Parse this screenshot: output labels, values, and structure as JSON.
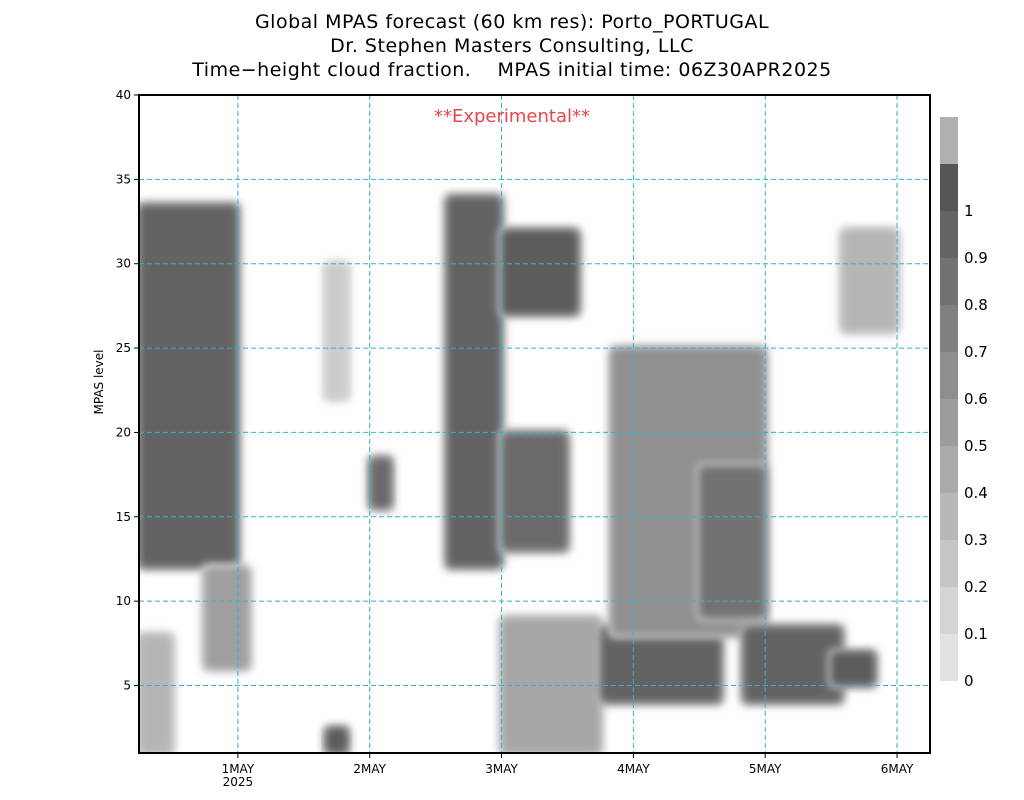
{
  "titles": {
    "line1": "Global MPAS forecast (60 km res): Porto_PORTUGAL",
    "line2": "Dr. Stephen Masters Consulting, LLC",
    "line3": "Time−height cloud fraction.    MPAS initial time: 06Z30APR2025"
  },
  "chart_data": {
    "type": "heatmap",
    "title": "Time-height cloud fraction.",
    "ylabel": "MPAS level",
    "xlabel": "",
    "ylim": [
      1,
      40
    ],
    "yticks": [
      5,
      10,
      15,
      20,
      25,
      30,
      35,
      40
    ],
    "xlim": [
      "2025-04-30T06:00",
      "2025-05-06T06:00"
    ],
    "xticks": [
      {
        "time": "2025-05-01T00:00",
        "label": "1MAY",
        "sublabel": "2025"
      },
      {
        "time": "2025-05-02T00:00",
        "label": "2MAY",
        "sublabel": ""
      },
      {
        "time": "2025-05-03T00:00",
        "label": "3MAY",
        "sublabel": ""
      },
      {
        "time": "2025-05-04T00:00",
        "label": "4MAY",
        "sublabel": ""
      },
      {
        "time": "2025-05-05T00:00",
        "label": "5MAY",
        "sublabel": ""
      },
      {
        "time": "2025-05-06T00:00",
        "label": "6MAY",
        "sublabel": ""
      }
    ],
    "grid": true,
    "annotation": "**Experimental**",
    "colorbar": {
      "labels": [
        "0",
        "0.1",
        "0.2",
        "0.3",
        "0.4",
        "0.5",
        "0.6",
        "0.7",
        "0.8",
        "0.9",
        "1"
      ],
      "colors": [
        "#e2e2e2",
        "#d4d4d4",
        "#c6c6c6",
        "#b8b8b8",
        "#aaaaaa",
        "#9c9c9c",
        "#8e8e8e",
        "#808080",
        "#727272",
        "#646464",
        "#565656",
        "#b0b0b0"
      ]
    },
    "cloud_regions": [
      {
        "t0": "2025-04-30T06:00",
        "t1": "2025-05-01T00:00",
        "z0": 12,
        "z1": 33.5,
        "fraction": 0.85
      },
      {
        "t0": "2025-04-30T06:00",
        "t1": "2025-04-30T12:00",
        "z0": 1,
        "z1": 8,
        "fraction": 0.3
      },
      {
        "t0": "2025-04-30T18:00",
        "t1": "2025-05-01T02:00",
        "z0": 6,
        "z1": 12,
        "fraction": 0.45
      },
      {
        "t0": "2025-05-01T16:00",
        "t1": "2025-05-01T20:00",
        "z0": 1,
        "z1": 2.5,
        "fraction": 0.9
      },
      {
        "t0": "2025-05-01T16:00",
        "t1": "2025-05-01T20:00",
        "z0": 22,
        "z1": 30,
        "fraction": 0.15
      },
      {
        "t0": "2025-05-02T00:00",
        "t1": "2025-05-02T04:00",
        "z0": 15.5,
        "z1": 18.5,
        "fraction": 0.8
      },
      {
        "t0": "2025-05-02T14:00",
        "t1": "2025-05-03T00:00",
        "z0": 12,
        "z1": 34,
        "fraction": 0.85
      },
      {
        "t0": "2025-05-03T00:00",
        "t1": "2025-05-03T14:00",
        "z0": 27,
        "z1": 32,
        "fraction": 0.9
      },
      {
        "t0": "2025-05-03T00:00",
        "t1": "2025-05-03T12:00",
        "z0": 13,
        "z1": 20,
        "fraction": 0.8
      },
      {
        "t0": "2025-05-03T00:00",
        "t1": "2025-05-03T18:00",
        "z0": 1,
        "z1": 9,
        "fraction": 0.4
      },
      {
        "t0": "2025-05-03T18:00",
        "t1": "2025-05-04T16:00",
        "z0": 4,
        "z1": 8.5,
        "fraction": 0.85
      },
      {
        "t0": "2025-05-03T20:00",
        "t1": "2025-05-05T00:00",
        "z0": 8,
        "z1": 25,
        "fraction": 0.55
      },
      {
        "t0": "2025-05-04T12:00",
        "t1": "2025-05-05T00:00",
        "z0": 9,
        "z1": 18,
        "fraction": 0.75
      },
      {
        "t0": "2025-05-04T20:00",
        "t1": "2025-05-05T14:00",
        "z0": 4,
        "z1": 8.5,
        "fraction": 0.85
      },
      {
        "t0": "2025-05-05T12:00",
        "t1": "2025-05-05T20:00",
        "z0": 5,
        "z1": 7,
        "fraction": 0.9
      },
      {
        "t0": "2025-05-05T14:00",
        "t1": "2025-05-06T00:00",
        "z0": 26,
        "z1": 32,
        "fraction": 0.3
      }
    ]
  }
}
